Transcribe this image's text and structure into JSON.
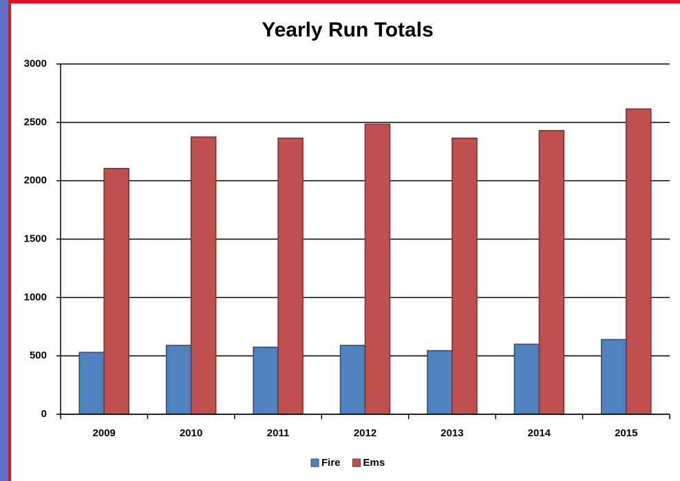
{
  "chart_data": {
    "type": "bar",
    "title": "Yearly Run Totals",
    "categories": [
      "2009",
      "2010",
      "2011",
      "2012",
      "2013",
      "2014",
      "2015"
    ],
    "series": [
      {
        "name": "Fire",
        "color": "#4f81bd",
        "values": [
          530,
          590,
          575,
          590,
          545,
          600,
          640
        ]
      },
      {
        "name": "Ems",
        "color": "#c0504d",
        "values": [
          2105,
          2375,
          2365,
          2485,
          2365,
          2430,
          2615
        ]
      }
    ],
    "ylim": [
      0,
      3000
    ],
    "yticks": [
      0,
      500,
      1000,
      1500,
      2000,
      2500,
      3000
    ],
    "grid": true,
    "legend": "bottom"
  }
}
